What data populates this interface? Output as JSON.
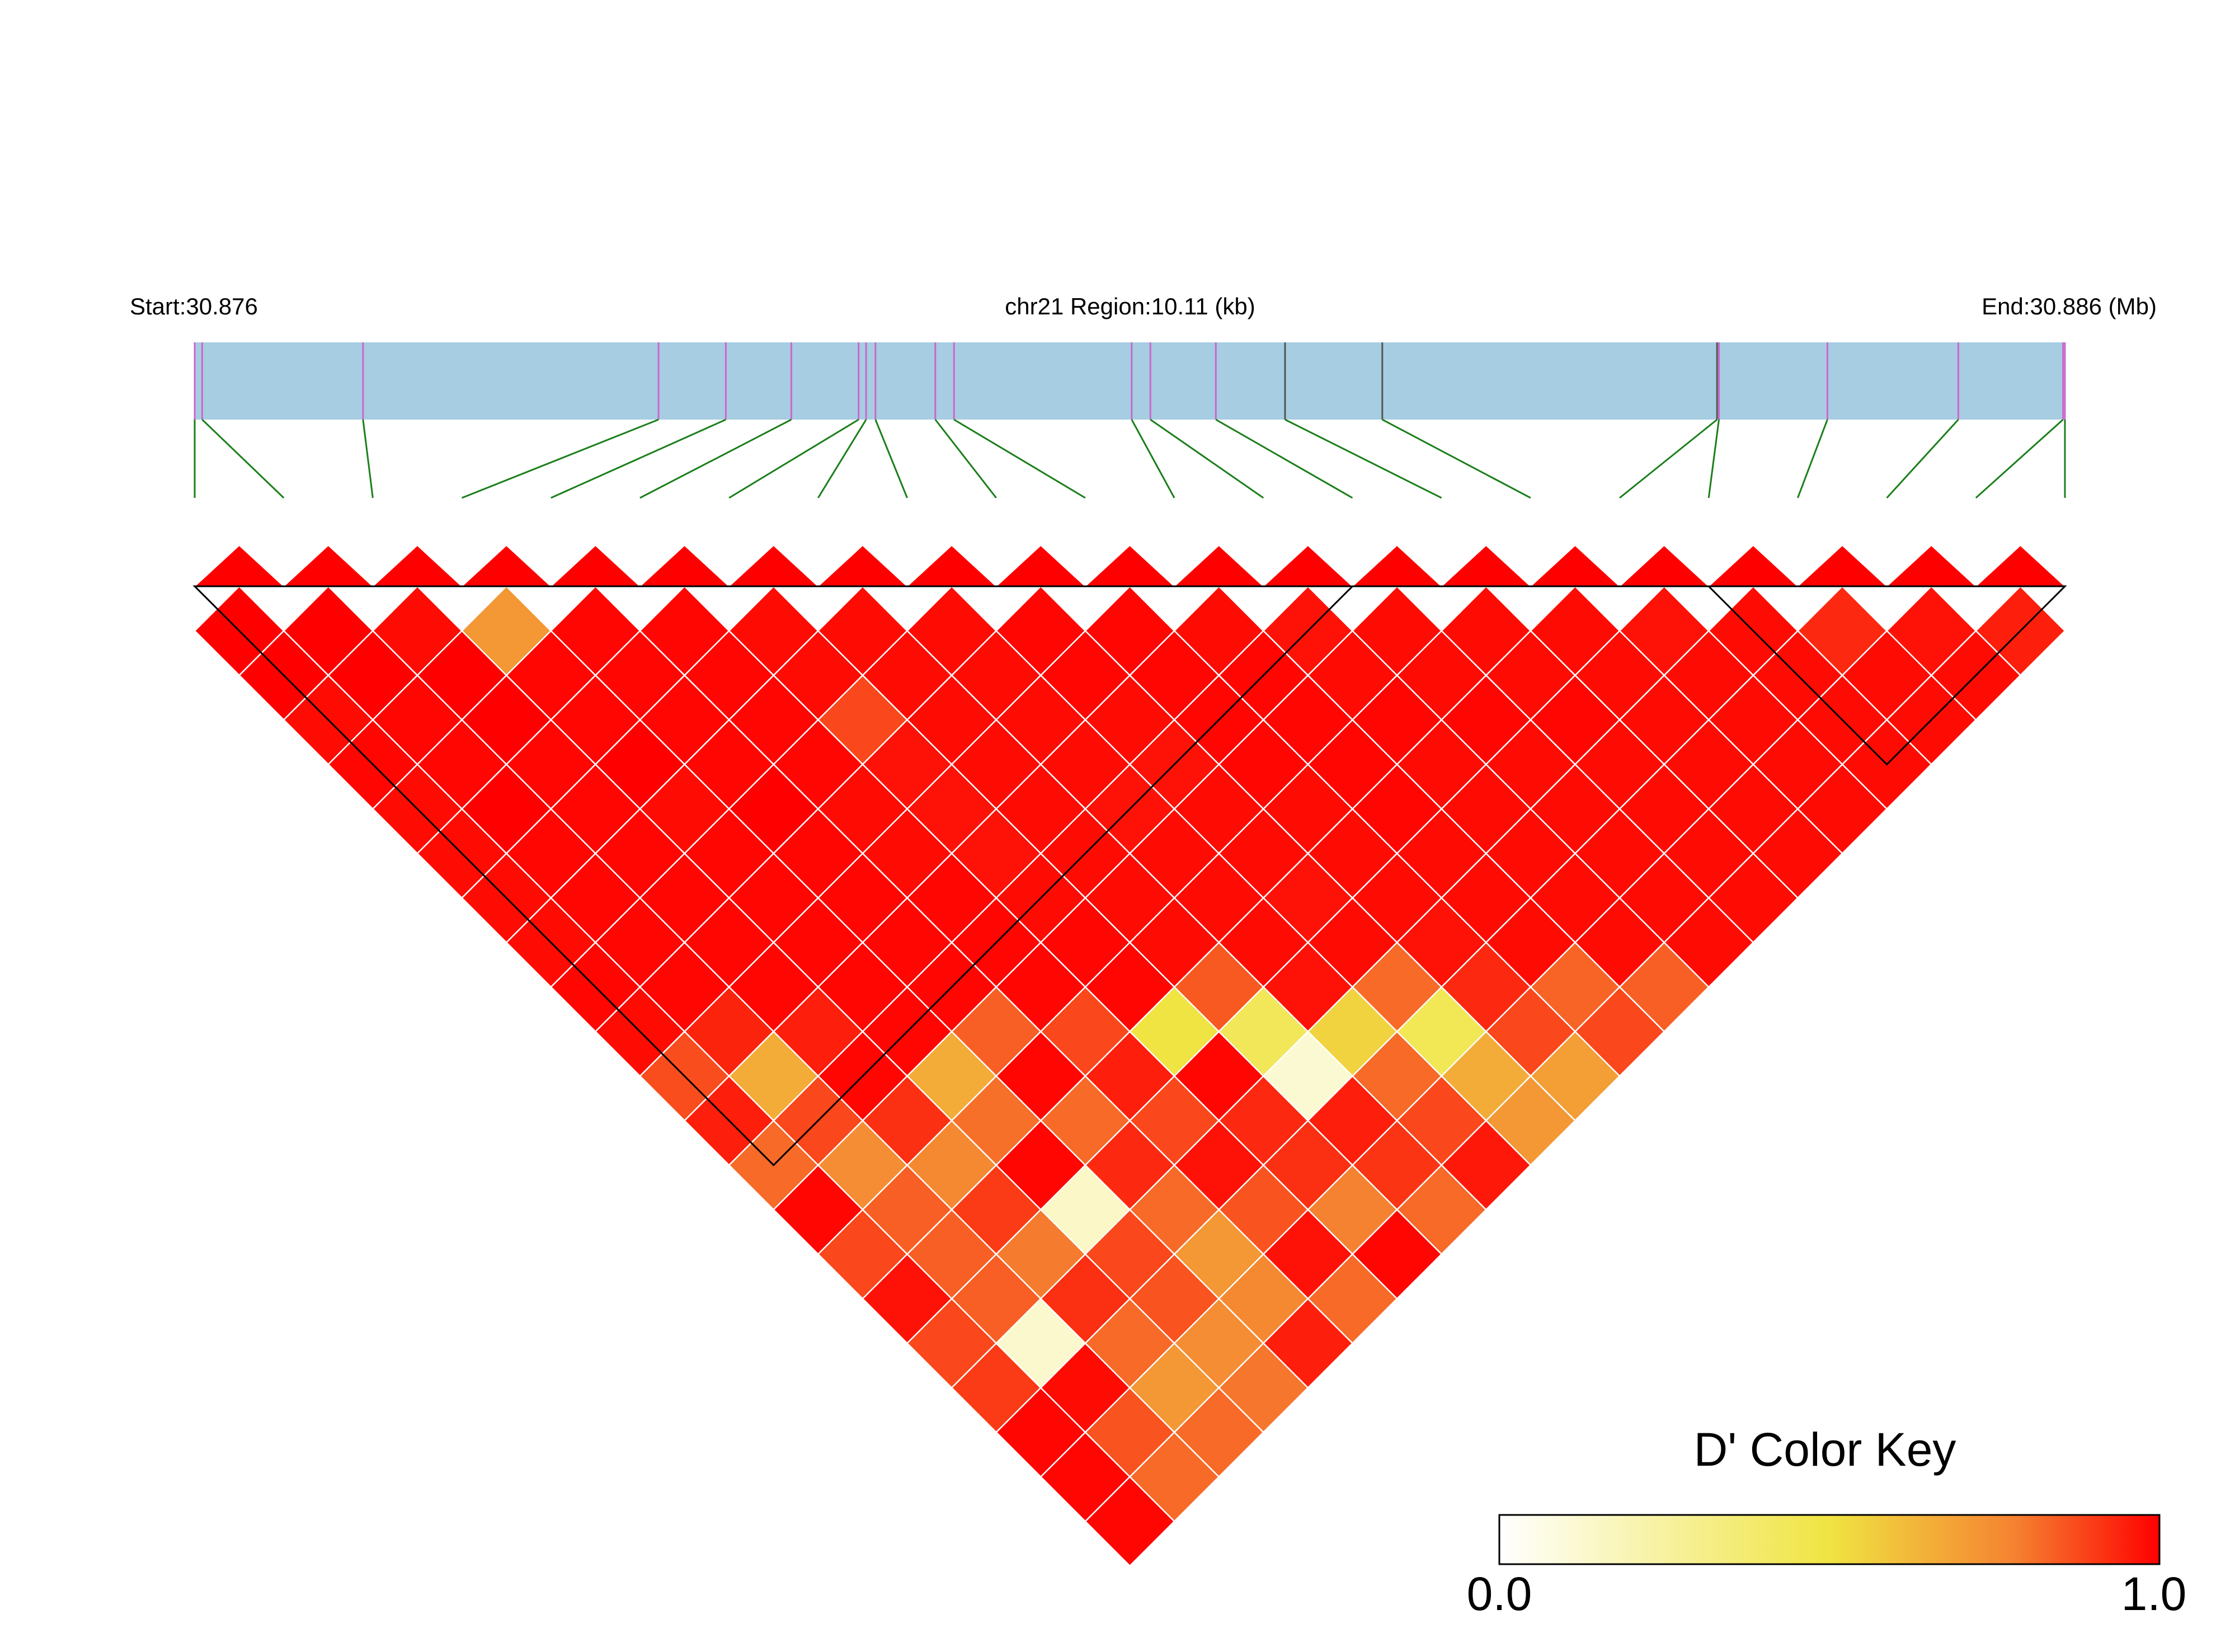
{
  "chart_data": {
    "type": "heatmap",
    "title": "",
    "region": {
      "start_label": "Start:30.876",
      "center_label": "chr21 Region:10.11 (kb)",
      "end_label": "End:30.886 (Mb)",
      "start_mb": 30.876,
      "end_mb": 30.886,
      "span_kb": 10.11
    },
    "snp_count": 22,
    "snp_positions_frac": [
      0.0,
      0.004,
      0.09,
      0.248,
      0.284,
      0.319,
      0.355,
      0.359,
      0.364,
      0.396,
      0.406,
      0.501,
      0.511,
      0.546,
      0.583,
      0.635,
      0.814,
      0.815,
      0.873,
      0.943,
      0.999,
      1.0
    ],
    "snp_marker_colors": [
      "#cc66cc",
      "#cc66cc",
      "#cc66cc",
      "#cc66cc",
      "#cc66cc",
      "#cc66cc",
      "#cc66cc",
      "#cc66cc",
      "#cc66cc",
      "#cc66cc",
      "#cc66cc",
      "#cc66cc",
      "#cc66cc",
      "#cc66cc",
      "#555555",
      "#555555",
      "#555555",
      "#cc66cc",
      "#cc66cc",
      "#cc66cc",
      "#cc66cc",
      "#cc66cc"
    ],
    "ld_metric": "D'",
    "ld_values": [
      [
        1.0,
        1.0,
        0.98,
        0.72,
        0.99,
        0.99,
        0.98,
        0.98,
        0.98,
        0.99,
        0.99,
        0.98,
        0.97,
        0.98,
        0.98,
        0.98,
        0.97,
        0.98,
        0.93,
        0.97,
        0.95
      ],
      [
        1.0,
        1.0,
        1.0,
        0.99,
        0.99,
        0.99,
        0.98,
        0.98,
        0.98,
        0.99,
        0.99,
        0.99,
        0.98,
        0.98,
        0.98,
        0.98,
        0.98,
        0.98,
        0.98,
        0.98
      ],
      [
        0.98,
        0.99,
        1.0,
        0.99,
        0.99,
        0.99,
        0.88,
        0.98,
        0.98,
        0.98,
        0.99,
        0.99,
        0.99,
        0.99,
        0.99,
        0.98,
        0.98,
        0.98,
        0.98
      ],
      [
        0.99,
        0.99,
        0.99,
        1.0,
        0.99,
        0.99,
        0.97,
        0.98,
        0.98,
        0.97,
        0.99,
        0.99,
        0.98,
        0.98,
        0.98,
        0.98,
        0.98,
        0.98
      ],
      [
        0.98,
        1.0,
        0.99,
        0.98,
        1.0,
        0.98,
        0.97,
        0.98,
        0.97,
        0.98,
        0.98,
        0.99,
        0.98,
        0.98,
        0.98,
        0.98,
        0.98
      ],
      [
        0.98,
        0.99,
        0.99,
        0.99,
        0.99,
        0.98,
        0.97,
        0.98,
        0.98,
        0.98,
        0.98,
        0.98,
        0.98,
        0.98,
        0.98,
        0.98
      ],
      [
        0.98,
        0.99,
        0.99,
        0.99,
        0.99,
        0.99,
        0.98,
        0.98,
        0.98,
        0.97,
        0.98,
        0.98,
        0.98,
        0.98,
        0.98
      ],
      [
        0.98,
        0.99,
        0.99,
        0.99,
        0.99,
        0.99,
        0.99,
        0.98,
        0.98,
        0.98,
        0.97,
        0.98,
        0.98,
        0.98
      ],
      [
        0.99,
        0.99,
        0.99,
        0.99,
        0.99,
        0.99,
        0.99,
        0.85,
        0.97,
        0.82,
        0.93,
        0.83,
        0.84,
        0.88
      ],
      [
        0.98,
        0.94,
        0.95,
        0.99,
        0.84,
        0.88,
        0.5,
        0.44,
        0.55,
        0.45,
        0.88,
        0.88,
        0.73
      ],
      [
        0.87,
        0.66,
        0.99,
        0.66,
        0.99,
        0.95,
        0.99,
        0.12,
        0.82,
        0.66,
        0.7,
        0.66
      ],
      [
        0.95,
        0.88,
        0.92,
        0.81,
        0.82,
        0.88,
        0.93,
        0.95,
        0.88,
        0.72,
        0.99
      ],
      [
        0.82,
        0.75,
        0.76,
        0.99,
        0.93,
        0.97,
        0.92,
        0.91,
        0.96,
        0.99
      ],
      [
        0.99,
        0.84,
        0.9,
        0.15,
        0.82,
        0.86,
        0.78,
        0.82,
        0.88
      ],
      [
        0.88,
        0.84,
        0.79,
        0.88,
        0.72,
        0.97,
        0.99,
        0.95
      ],
      [
        0.97,
        0.84,
        0.92,
        0.86,
        0.76,
        0.82,
        0.99
      ],
      [
        0.88,
        0.13,
        0.82,
        0.75,
        0.95,
        0.9
      ],
      [
        0.9,
        0.98,
        0.72,
        0.8,
        0.55
      ],
      [
        0.99,
        0.86,
        0.82,
        0.18
      ],
      [
        0.99,
        0.82,
        0.88
      ],
      [
        0.99,
        0.84
      ],
      [
        0.96
      ]
    ],
    "ld_blocks": [
      [
        0,
        13
      ],
      [
        17,
        21
      ]
    ],
    "color_key": {
      "title": "D' Color Key",
      "min_label": "0.0",
      "max_label": "1.0",
      "min": 0.0,
      "max": 1.0,
      "stops": [
        "#ffffff",
        "#f0e442",
        "#f58231",
        "#ff0000"
      ]
    }
  }
}
